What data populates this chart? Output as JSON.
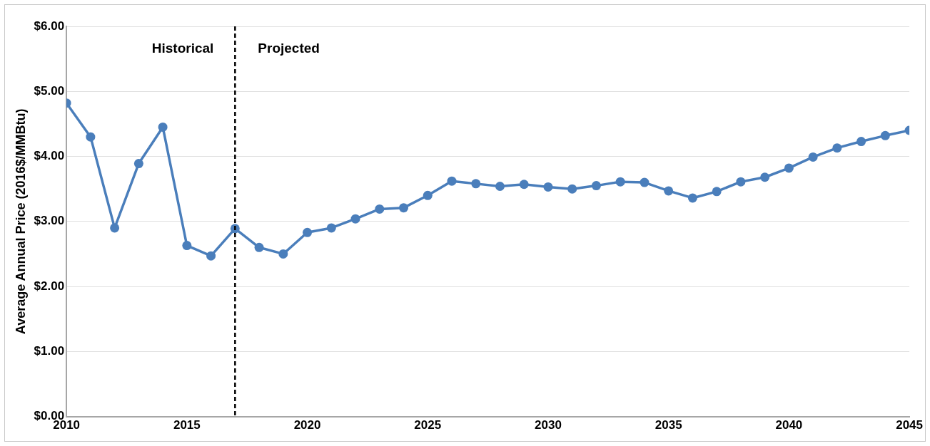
{
  "chart_data": {
    "type": "line",
    "ylabel": "Average Annual Price (2016$/MMBtu)",
    "x": [
      2010,
      2011,
      2012,
      2013,
      2014,
      2015,
      2016,
      2017,
      2018,
      2019,
      2020,
      2021,
      2022,
      2023,
      2024,
      2025,
      2026,
      2027,
      2028,
      2029,
      2030,
      2031,
      2032,
      2033,
      2034,
      2035,
      2036,
      2037,
      2038,
      2039,
      2040,
      2041,
      2042,
      2043,
      2044,
      2045
    ],
    "series": [
      {
        "color": "#4a7ebb",
        "values": [
          4.82,
          4.3,
          2.9,
          3.89,
          4.45,
          2.63,
          2.47,
          2.89,
          2.6,
          2.5,
          2.83,
          2.9,
          3.04,
          3.19,
          3.21,
          3.4,
          3.62,
          3.58,
          3.54,
          3.57,
          3.53,
          3.5,
          3.55,
          3.61,
          3.6,
          3.47,
          3.36,
          3.46,
          3.61,
          3.68,
          3.82,
          3.99,
          4.13,
          4.23,
          4.32,
          4.4
        ]
      }
    ],
    "xlim": [
      2010,
      2045
    ],
    "xticks": [
      2010,
      2015,
      2020,
      2025,
      2030,
      2035,
      2040,
      2045
    ],
    "ylim": [
      0,
      6
    ],
    "yticks": [
      {
        "value": 0,
        "label": "$0.00"
      },
      {
        "value": 1,
        "label": "$1.00"
      },
      {
        "value": 2,
        "label": "$2.00"
      },
      {
        "value": 3,
        "label": "$3.00"
      },
      {
        "value": 4,
        "label": "$4.00"
      },
      {
        "value": 5,
        "label": "$5.00"
      },
      {
        "value": 6,
        "label": "$6.00"
      }
    ],
    "ref_lines": [
      {
        "axis": "x",
        "value": 2017,
        "color": "#000000",
        "line_style": "dashed"
      }
    ],
    "annotations": [
      "Historical",
      "Projected"
    ],
    "grid": "y",
    "marker": "circle",
    "line_style": "solid",
    "legend": false
  }
}
